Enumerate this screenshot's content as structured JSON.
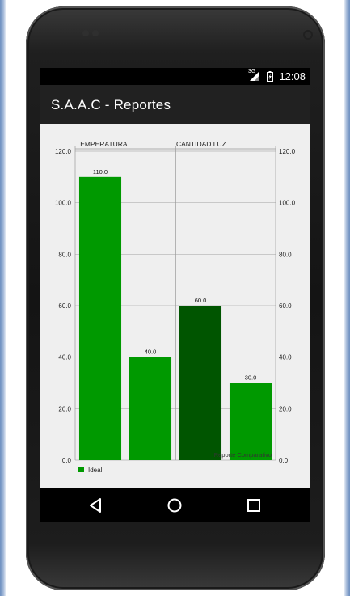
{
  "status_bar": {
    "time": "12:08",
    "network": "3G",
    "signal_icon": "signal-icon",
    "battery_icon": "battery-icon"
  },
  "app_bar": {
    "title": "S.A.A.C - Reportes"
  },
  "chart_data": {
    "type": "bar",
    "categories": [
      "TEMPERATURA",
      "CANTIDAD LUZ"
    ],
    "bars": [
      {
        "group": "TEMPERATURA",
        "value": 110.0,
        "label": "110.0",
        "color": "#009900"
      },
      {
        "group": "TEMPERATURA",
        "value": 40.0,
        "label": "40.0",
        "color": "#009900"
      },
      {
        "group": "CANTIDAD LUZ",
        "value": 60.0,
        "label": "60.0",
        "color": "#005500"
      },
      {
        "group": "CANTIDAD LUZ",
        "value": 30.0,
        "label": "30.0",
        "color": "#009900"
      }
    ],
    "y_ticks": [
      "0.0",
      "20.0",
      "40.0",
      "60.0",
      "80.0",
      "100.0",
      "120.0"
    ],
    "ylim": [
      0,
      120
    ],
    "description": "Reporte Comparativo",
    "legend": [
      {
        "name": "Ideal",
        "color": "#009900"
      }
    ],
    "legend_position": "bottom-left",
    "grid": true,
    "dual_y_axis": true
  },
  "colors": {
    "accent": "#009900",
    "accent_dark": "#005500",
    "app_bar": "#212121",
    "chart_bg": "#efefef"
  },
  "nav": {
    "back_icon": "back-icon",
    "home_icon": "home-icon",
    "recents_icon": "recents-icon"
  }
}
